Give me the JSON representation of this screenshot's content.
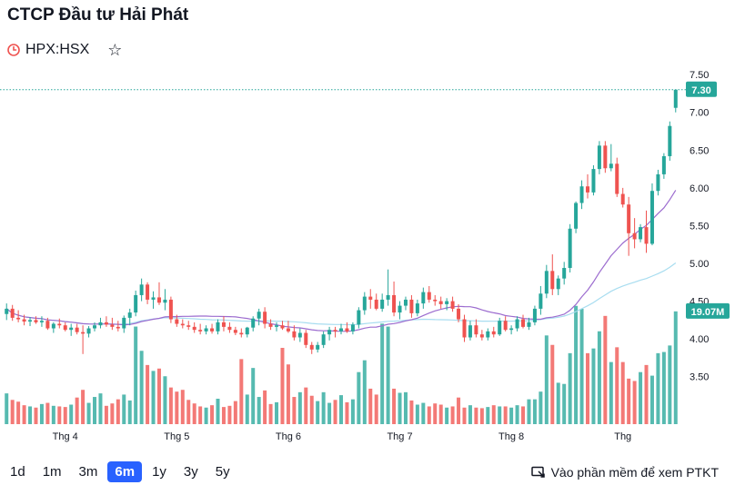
{
  "header": {
    "title": "CTCP Đầu tư Hải Phát",
    "ticker": "HPX:HSX"
  },
  "range_buttons": [
    "1d",
    "1m",
    "3m",
    "6m",
    "1y",
    "3y",
    "5y"
  ],
  "active_range": "6m",
  "ta_link": "Vào phần mềm để xem PTKT",
  "colors": {
    "up": "#26a69a",
    "down": "#ef5350",
    "ma_short": "#9c6ccf",
    "ma_long": "#a8ddf0",
    "label_bg": "#26a69a"
  },
  "chart_data": {
    "type": "candlestick",
    "title": "HPX:HSX",
    "x_tick_labels": [
      "Thg 4",
      "Thg 5",
      "Thg 6",
      "Thg 7",
      "Thg 8",
      "Thg"
    ],
    "x_tick_positions": [
      10,
      29,
      48,
      67,
      86,
      105
    ],
    "y_ticks": [
      "7.50",
      "7.00",
      "6.50",
      "6.00",
      "5.50",
      "5.00",
      "4.50",
      "4.00",
      "3.50"
    ],
    "ylim": [
      3.1,
      7.55
    ],
    "last_price": 7.3,
    "last_price_label": "7.30",
    "last_volume_label": "19.07M",
    "volume_max": 21.5,
    "candles": [
      [
        4.33,
        4.47,
        4.25,
        4.4,
        5.2
      ],
      [
        4.4,
        4.45,
        4.24,
        4.28,
        4.1
      ],
      [
        4.28,
        4.38,
        4.22,
        4.26,
        3.8
      ],
      [
        4.26,
        4.32,
        4.18,
        4.23,
        3.2
      ],
      [
        4.23,
        4.29,
        4.17,
        4.25,
        3.0
      ],
      [
        4.25,
        4.3,
        4.2,
        4.22,
        2.8
      ],
      [
        4.22,
        4.3,
        4.16,
        4.24,
        3.4
      ],
      [
        4.24,
        4.28,
        4.12,
        4.14,
        3.6
      ],
      [
        4.14,
        4.22,
        4.08,
        4.2,
        3.1
      ],
      [
        4.2,
        4.27,
        4.14,
        4.18,
        3.0
      ],
      [
        4.18,
        4.22,
        4.1,
        4.12,
        2.9
      ],
      [
        4.12,
        4.2,
        4.04,
        4.15,
        3.3
      ],
      [
        4.15,
        4.2,
        4.06,
        4.09,
        4.5
      ],
      [
        4.09,
        4.18,
        3.8,
        4.07,
        5.8
      ],
      [
        4.07,
        4.17,
        4.02,
        4.14,
        3.6
      ],
      [
        4.14,
        4.22,
        4.1,
        4.18,
        4.6
      ],
      [
        4.18,
        4.28,
        4.14,
        4.22,
        5.2
      ],
      [
        4.22,
        4.3,
        4.16,
        4.19,
        3.1
      ],
      [
        4.19,
        4.28,
        4.12,
        4.16,
        3.5
      ],
      [
        4.16,
        4.24,
        4.1,
        4.14,
        4.2
      ],
      [
        4.14,
        4.31,
        4.08,
        4.28,
        5.0
      ],
      [
        4.28,
        4.4,
        4.18,
        4.35,
        4.0
      ],
      [
        4.35,
        4.64,
        4.3,
        4.58,
        16.5
      ],
      [
        4.58,
        4.8,
        4.5,
        4.72,
        12.4
      ],
      [
        4.72,
        4.75,
        4.46,
        4.52,
        10.0
      ],
      [
        4.52,
        4.63,
        4.4,
        4.55,
        9.0
      ],
      [
        4.55,
        4.75,
        4.45,
        4.48,
        9.4
      ],
      [
        4.48,
        4.66,
        4.38,
        4.52,
        8.1
      ],
      [
        4.52,
        4.56,
        4.21,
        4.26,
        6.2
      ],
      [
        4.26,
        4.32,
        4.16,
        4.2,
        5.5
      ],
      [
        4.2,
        4.26,
        4.14,
        4.18,
        5.8
      ],
      [
        4.18,
        4.24,
        4.12,
        4.16,
        4.1
      ],
      [
        4.16,
        4.22,
        4.08,
        4.12,
        3.5
      ],
      [
        4.12,
        4.2,
        4.06,
        4.1,
        3.0
      ],
      [
        4.1,
        4.18,
        4.06,
        4.14,
        2.8
      ],
      [
        4.14,
        4.2,
        4.07,
        4.1,
        3.2
      ],
      [
        4.1,
        4.26,
        4.06,
        4.22,
        4.3
      ],
      [
        4.22,
        4.3,
        4.1,
        4.16,
        2.9
      ],
      [
        4.16,
        4.22,
        4.08,
        4.12,
        3.1
      ],
      [
        4.12,
        4.16,
        4.05,
        4.08,
        3.9
      ],
      [
        4.08,
        4.14,
        4.02,
        4.06,
        11.0
      ],
      [
        4.06,
        4.16,
        4.02,
        4.15,
        5.0
      ],
      [
        4.15,
        4.3,
        4.1,
        4.27,
        9.5
      ],
      [
        4.27,
        4.4,
        4.18,
        4.36,
        4.6
      ],
      [
        4.36,
        4.42,
        4.14,
        4.2,
        5.7
      ],
      [
        4.2,
        4.26,
        4.12,
        4.16,
        3.4
      ],
      [
        4.16,
        4.22,
        4.1,
        4.18,
        3.7
      ],
      [
        4.18,
        4.24,
        4.12,
        4.14,
        12.9
      ],
      [
        4.14,
        4.24,
        4.08,
        4.1,
        10.1
      ],
      [
        4.1,
        4.18,
        3.98,
        4.02,
        4.6
      ],
      [
        4.02,
        4.14,
        3.96,
        4.08,
        5.4
      ],
      [
        4.08,
        4.12,
        3.88,
        3.92,
        6.2
      ],
      [
        3.92,
        3.96,
        3.8,
        3.86,
        4.8
      ],
      [
        3.86,
        3.96,
        3.82,
        3.92,
        3.9
      ],
      [
        3.92,
        4.1,
        3.88,
        4.06,
        5.4
      ],
      [
        4.06,
        4.16,
        3.98,
        4.12,
        3.6
      ],
      [
        4.12,
        4.16,
        4.02,
        4.1,
        4.1
      ],
      [
        4.1,
        4.2,
        4.06,
        4.14,
        4.9
      ],
      [
        4.14,
        4.22,
        4.08,
        4.1,
        3.7
      ],
      [
        4.1,
        4.22,
        4.06,
        4.19,
        4.2
      ],
      [
        4.19,
        4.42,
        4.14,
        4.38,
        8.8
      ],
      [
        4.38,
        4.62,
        4.32,
        4.56,
        10.8
      ],
      [
        4.56,
        4.66,
        4.4,
        4.52,
        6.0
      ],
      [
        4.52,
        4.6,
        4.38,
        4.4,
        5.0
      ],
      [
        4.4,
        4.6,
        4.36,
        4.52,
        17.0
      ],
      [
        4.52,
        4.92,
        4.44,
        4.58,
        16.5
      ],
      [
        4.58,
        4.76,
        4.3,
        4.35,
        6.0
      ],
      [
        4.35,
        4.5,
        4.26,
        4.44,
        5.3
      ],
      [
        4.44,
        4.56,
        4.38,
        4.52,
        5.4
      ],
      [
        4.52,
        4.58,
        4.28,
        4.34,
        4.0
      ],
      [
        4.34,
        4.52,
        4.3,
        4.47,
        3.3
      ],
      [
        4.47,
        4.68,
        4.4,
        4.62,
        3.6
      ],
      [
        4.62,
        4.7,
        4.48,
        4.52,
        3.0
      ],
      [
        4.52,
        4.58,
        4.44,
        4.5,
        3.5
      ],
      [
        4.5,
        4.56,
        4.4,
        4.46,
        3.3
      ],
      [
        4.46,
        4.54,
        4.38,
        4.5,
        2.8
      ],
      [
        4.5,
        4.56,
        4.36,
        4.4,
        3.0
      ],
      [
        4.4,
        4.46,
        4.22,
        4.26,
        4.5
      ],
      [
        4.26,
        4.32,
        3.96,
        4.02,
        2.8
      ],
      [
        4.02,
        4.24,
        3.98,
        4.18,
        3.2
      ],
      [
        4.18,
        4.26,
        4.02,
        4.06,
        2.8
      ],
      [
        4.06,
        4.12,
        3.98,
        4.02,
        2.7
      ],
      [
        4.02,
        4.14,
        3.98,
        4.1,
        2.9
      ],
      [
        4.1,
        4.16,
        4.02,
        4.06,
        3.2
      ],
      [
        4.06,
        4.28,
        4.04,
        4.24,
        3.0
      ],
      [
        4.24,
        4.3,
        4.1,
        4.12,
        3.0
      ],
      [
        4.12,
        4.18,
        4.06,
        4.14,
        2.8
      ],
      [
        4.14,
        4.3,
        4.1,
        4.26,
        3.2
      ],
      [
        4.26,
        4.32,
        4.14,
        4.16,
        3.0
      ],
      [
        4.16,
        4.28,
        4.12,
        4.22,
        4.2
      ],
      [
        4.22,
        4.44,
        4.18,
        4.4,
        4.2
      ],
      [
        4.4,
        4.7,
        4.32,
        4.6,
        5.5
      ],
      [
        4.6,
        4.98,
        4.54,
        4.9,
        15.0
      ],
      [
        4.9,
        5.12,
        4.58,
        4.66,
        13.4
      ],
      [
        4.66,
        4.84,
        4.58,
        4.8,
        7.0
      ],
      [
        4.8,
        5.02,
        4.72,
        4.94,
        6.8
      ],
      [
        4.94,
        5.52,
        4.88,
        5.46,
        12.0
      ],
      [
        5.46,
        5.82,
        5.4,
        5.8,
        20.0
      ],
      [
        5.8,
        6.1,
        5.72,
        6.02,
        19.5
      ],
      [
        6.02,
        6.18,
        5.86,
        5.94,
        12.0
      ],
      [
        5.94,
        6.3,
        5.9,
        6.25,
        12.8
      ],
      [
        6.25,
        6.62,
        6.18,
        6.56,
        15.7
      ],
      [
        6.56,
        6.62,
        6.2,
        6.26,
        18.3
      ],
      [
        6.26,
        6.58,
        6.22,
        6.32,
        10.5
      ],
      [
        6.32,
        6.4,
        5.88,
        5.92,
        13.0
      ],
      [
        5.92,
        6.0,
        5.74,
        5.78,
        10.5
      ],
      [
        5.78,
        5.88,
        5.1,
        5.4,
        7.7
      ],
      [
        5.4,
        5.6,
        5.2,
        5.32,
        7.3
      ],
      [
        5.32,
        5.52,
        5.28,
        5.48,
        8.8
      ],
      [
        5.48,
        5.7,
        5.14,
        5.26,
        10.0
      ],
      [
        5.26,
        6.06,
        5.24,
        5.96,
        8.2
      ],
      [
        5.96,
        6.24,
        5.9,
        6.18,
        12.0
      ],
      [
        6.18,
        6.46,
        6.12,
        6.42,
        12.2
      ],
      [
        6.42,
        6.88,
        6.36,
        6.82,
        13.3
      ],
      [
        7.06,
        7.3,
        7.0,
        7.3,
        19.07
      ]
    ]
  }
}
